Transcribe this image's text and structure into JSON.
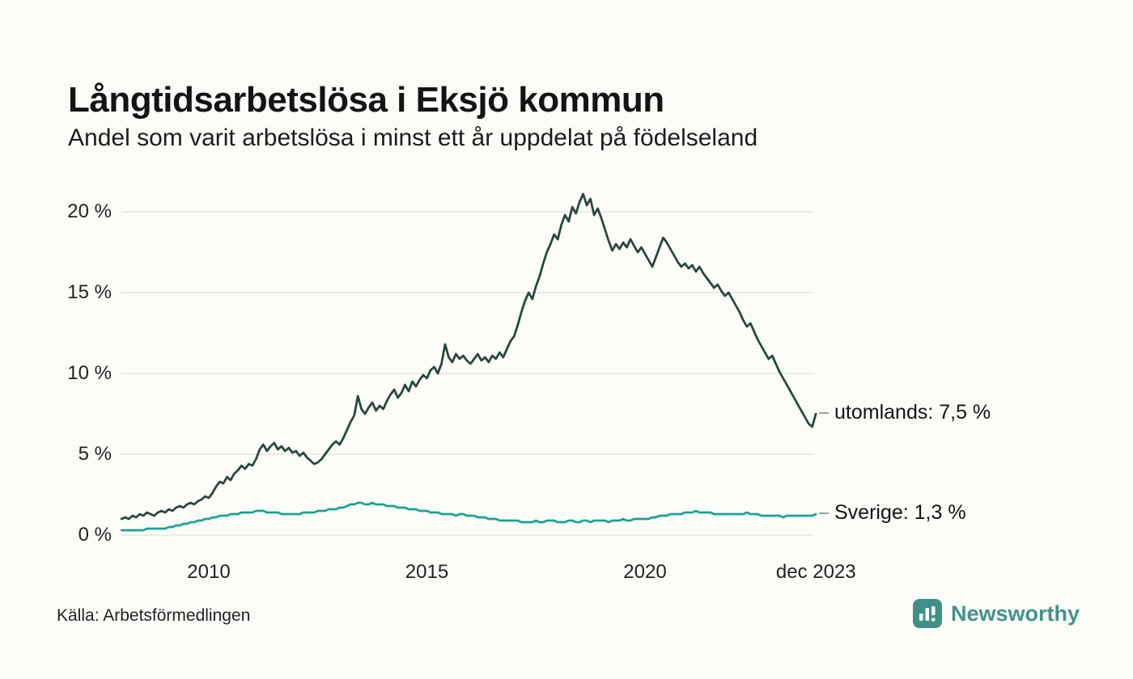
{
  "title": "Långtidsarbetslösa i Eksjö kommun",
  "subtitle": "Andel som varit arbetslösa i minst ett år uppdelat på födelseland",
  "source": "Källa: Arbetsförmedlingen",
  "brand": {
    "name": "Newsworthy",
    "color": "#3d9187"
  },
  "colors": {
    "background": "#fcfcf9",
    "grid": "#e5e5e2",
    "text": "#1a1a1a",
    "utomlands_line": "#2a473f",
    "sverige_line": "#1aa392"
  },
  "chart_data": {
    "type": "line",
    "title": "Långtidsarbetslösa i Eksjö kommun",
    "subtitle": "Andel som varit arbetslösa i minst ett år uppdelat på födelseland",
    "x_unit": "month",
    "x_range": [
      "2008-01",
      "2023-12"
    ],
    "ylim": [
      0,
      22
    ],
    "grid": "horizontal",
    "legend_position": "right-end-labels",
    "yticks": [
      {
        "value": 0,
        "label": "0 %"
      },
      {
        "value": 5,
        "label": "5 %"
      },
      {
        "value": 10,
        "label": "10 %"
      },
      {
        "value": 15,
        "label": "15 %"
      },
      {
        "value": 20,
        "label": "20 %"
      }
    ],
    "xticks": [
      {
        "year": 2010,
        "label": "2010"
      },
      {
        "year": 2015,
        "label": "2015"
      },
      {
        "year": 2020,
        "label": "2020"
      },
      {
        "year": 2023.92,
        "label": "dec 2023"
      }
    ],
    "series": [
      {
        "name": "utomlands",
        "color": "#2a473f",
        "end_value": 7.5,
        "end_label": "utomlands: 7,5 %",
        "values": [
          1.0,
          1.1,
          1.0,
          1.2,
          1.1,
          1.3,
          1.2,
          1.4,
          1.3,
          1.2,
          1.4,
          1.5,
          1.4,
          1.6,
          1.5,
          1.7,
          1.8,
          1.7,
          1.9,
          2.0,
          1.9,
          2.1,
          2.2,
          2.4,
          2.3,
          2.6,
          3.0,
          3.3,
          3.2,
          3.6,
          3.4,
          3.8,
          4.0,
          4.3,
          4.1,
          4.4,
          4.3,
          4.7,
          5.3,
          5.6,
          5.2,
          5.5,
          5.7,
          5.3,
          5.5,
          5.2,
          5.4,
          5.1,
          5.2,
          4.9,
          5.1,
          4.8,
          4.6,
          4.4,
          4.5,
          4.7,
          5.0,
          5.3,
          5.6,
          5.8,
          5.6,
          6.0,
          6.5,
          7.0,
          7.4,
          8.6,
          7.8,
          7.5,
          7.9,
          8.2,
          7.7,
          8.0,
          7.8,
          8.3,
          8.7,
          9.0,
          8.5,
          8.8,
          9.3,
          8.9,
          9.5,
          9.2,
          9.6,
          9.9,
          9.7,
          10.2,
          10.4,
          10.0,
          10.6,
          11.8,
          11.0,
          10.7,
          11.2,
          10.9,
          11.1,
          10.8,
          10.6,
          10.9,
          11.2,
          10.8,
          11.0,
          10.7,
          11.1,
          10.9,
          11.3,
          11.0,
          11.5,
          12.0,
          12.3,
          13.0,
          13.8,
          14.5,
          15.0,
          14.6,
          15.4,
          16.0,
          16.8,
          17.5,
          18.0,
          18.6,
          18.3,
          19.2,
          19.8,
          19.4,
          20.3,
          19.9,
          20.6,
          21.1,
          20.4,
          20.8,
          19.8,
          20.2,
          19.6,
          18.9,
          18.2,
          17.6,
          18.0,
          17.7,
          18.1,
          17.8,
          18.3,
          17.9,
          17.5,
          17.8,
          17.4,
          17.0,
          16.6,
          17.2,
          17.8,
          18.4,
          18.1,
          17.7,
          17.3,
          16.9,
          16.6,
          16.8,
          16.5,
          16.7,
          16.3,
          16.6,
          16.2,
          15.9,
          15.6,
          15.3,
          15.5,
          15.1,
          14.8,
          15.0,
          14.6,
          14.2,
          13.8,
          13.3,
          12.9,
          13.1,
          12.6,
          12.1,
          11.7,
          11.3,
          10.9,
          11.1,
          10.6,
          10.1,
          9.7,
          9.3,
          8.9,
          8.5,
          8.1,
          7.7,
          7.3,
          6.9,
          6.7,
          7.5
        ]
      },
      {
        "name": "Sverige",
        "color": "#1aa392",
        "end_value": 1.3,
        "end_label": "Sverige: 1,3 %",
        "values": [
          0.3,
          0.3,
          0.3,
          0.3,
          0.3,
          0.3,
          0.3,
          0.4,
          0.4,
          0.4,
          0.4,
          0.4,
          0.4,
          0.5,
          0.5,
          0.6,
          0.6,
          0.7,
          0.7,
          0.8,
          0.8,
          0.9,
          0.9,
          1.0,
          1.0,
          1.1,
          1.1,
          1.2,
          1.2,
          1.2,
          1.3,
          1.3,
          1.3,
          1.4,
          1.4,
          1.4,
          1.4,
          1.5,
          1.5,
          1.5,
          1.4,
          1.4,
          1.4,
          1.4,
          1.3,
          1.3,
          1.3,
          1.3,
          1.3,
          1.3,
          1.4,
          1.4,
          1.4,
          1.4,
          1.5,
          1.5,
          1.5,
          1.6,
          1.6,
          1.6,
          1.7,
          1.7,
          1.8,
          1.9,
          1.9,
          2.0,
          2.0,
          1.9,
          1.9,
          2.0,
          1.9,
          1.9,
          1.9,
          1.8,
          1.8,
          1.8,
          1.7,
          1.7,
          1.7,
          1.6,
          1.6,
          1.6,
          1.5,
          1.5,
          1.5,
          1.4,
          1.4,
          1.4,
          1.3,
          1.3,
          1.3,
          1.3,
          1.2,
          1.3,
          1.3,
          1.2,
          1.2,
          1.2,
          1.1,
          1.1,
          1.1,
          1.0,
          1.0,
          1.0,
          0.9,
          0.9,
          0.9,
          0.9,
          0.9,
          0.9,
          0.8,
          0.8,
          0.8,
          0.8,
          0.9,
          0.8,
          0.8,
          0.9,
          0.9,
          0.9,
          0.8,
          0.8,
          0.8,
          0.9,
          0.9,
          0.8,
          0.8,
          0.9,
          0.9,
          0.8,
          0.9,
          0.9,
          0.9,
          0.9,
          0.8,
          0.9,
          0.9,
          0.9,
          1.0,
          0.9,
          0.9,
          1.0,
          1.0,
          1.0,
          1.0,
          1.0,
          1.1,
          1.1,
          1.2,
          1.2,
          1.2,
          1.3,
          1.3,
          1.3,
          1.3,
          1.4,
          1.4,
          1.4,
          1.5,
          1.4,
          1.4,
          1.4,
          1.4,
          1.3,
          1.3,
          1.3,
          1.3,
          1.3,
          1.3,
          1.3,
          1.3,
          1.3,
          1.4,
          1.3,
          1.3,
          1.3,
          1.2,
          1.2,
          1.2,
          1.2,
          1.2,
          1.2,
          1.1,
          1.2,
          1.2,
          1.2,
          1.2,
          1.2,
          1.2,
          1.2,
          1.2,
          1.3
        ]
      }
    ]
  }
}
